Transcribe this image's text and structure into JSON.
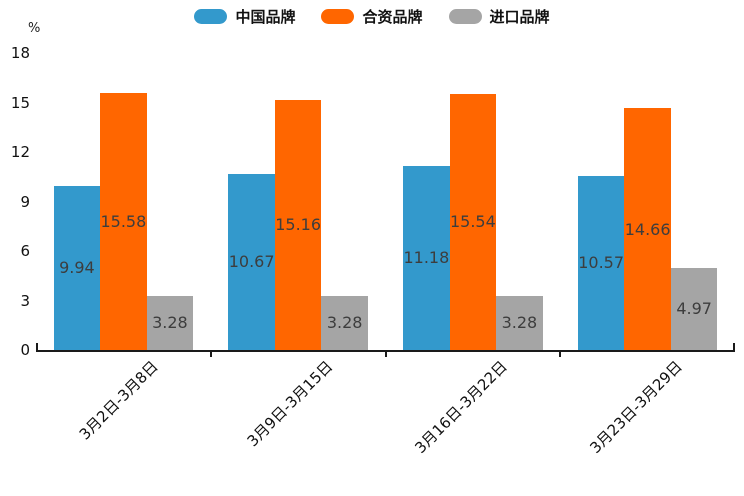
{
  "chart_data": {
    "type": "bar",
    "title": "",
    "categories": [
      "3月2日-3月8日",
      "3月9日-3月15日",
      "3月16日-3月22日",
      "3月23日-3月29日"
    ],
    "series": [
      {
        "name": "中国品牌",
        "color": "#3399CC",
        "values": [
          9.94,
          10.67,
          11.18,
          10.57
        ]
      },
      {
        "name": "合资品牌",
        "color": "#FF6600",
        "values": [
          15.58,
          15.16,
          15.54,
          14.66
        ]
      },
      {
        "name": "进口品牌",
        "color": "#A5A5A5",
        "values": [
          3.28,
          3.28,
          3.28,
          4.97
        ]
      }
    ],
    "ylabel": "%",
    "ylim": [
      0,
      18
    ],
    "y_ticks": [
      0,
      3,
      6,
      9,
      12,
      15,
      18
    ],
    "grid": false,
    "legend_position": "top",
    "value_labels": "inside-center",
    "axis_color": "#1a1a1a",
    "value_label_color": "#3d3d3d"
  }
}
